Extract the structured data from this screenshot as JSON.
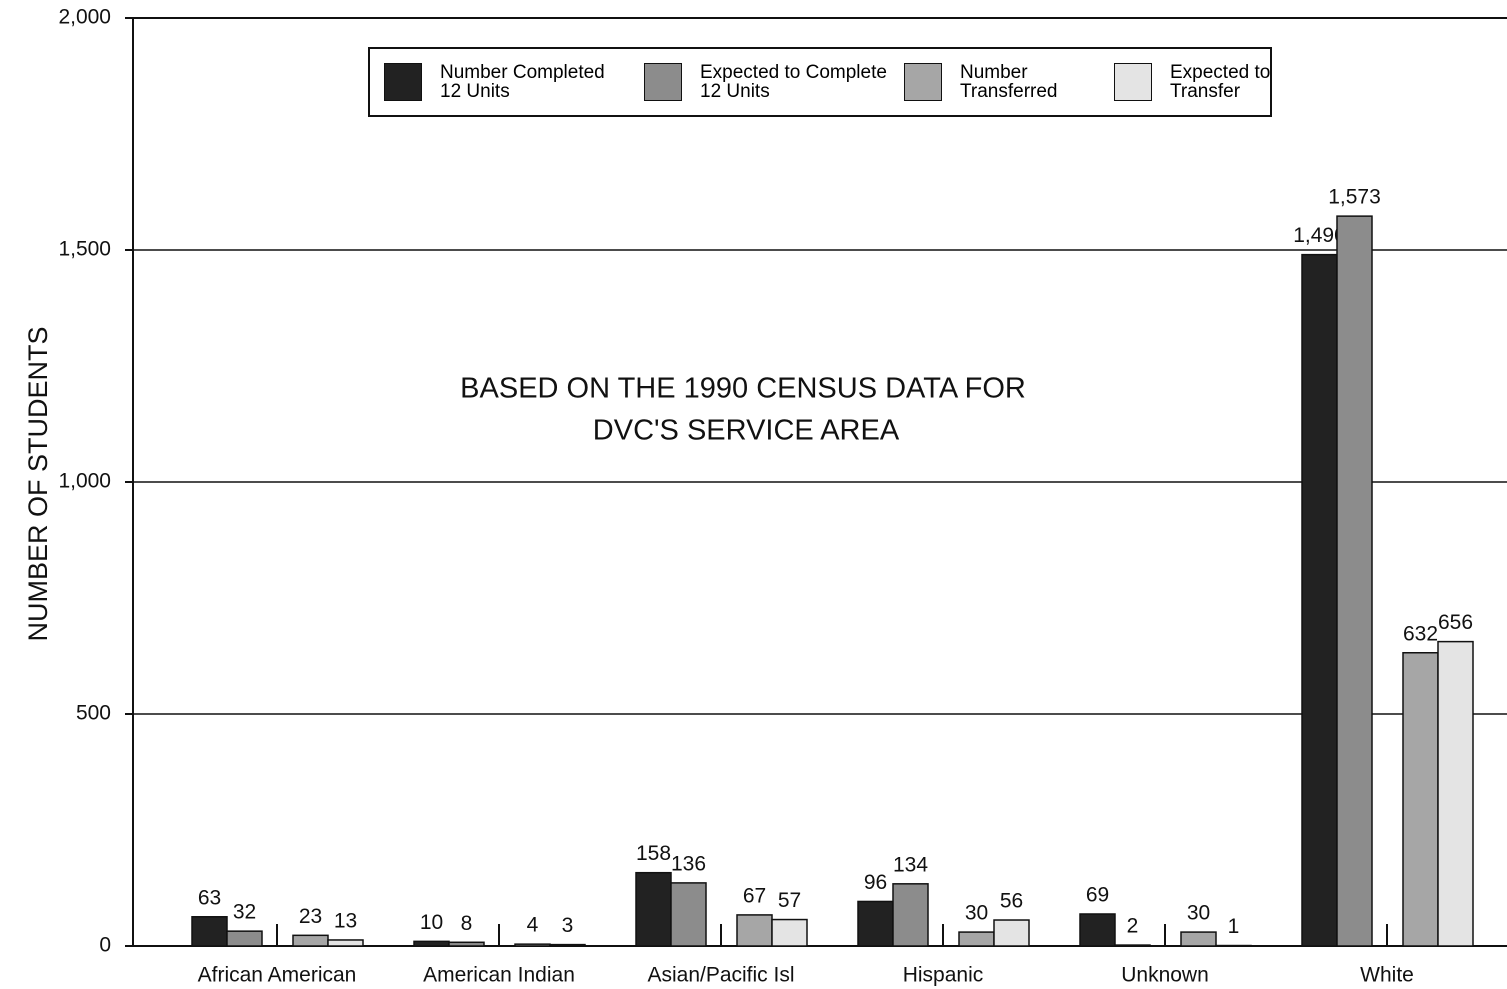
{
  "chart_data": {
    "type": "bar",
    "annotation": [
      "BASED ON THE 1990 CENSUS DATA FOR",
      "DVC'S SERVICE AREA"
    ],
    "y_label": "NUMBER OF STUDENTS",
    "categories": [
      "African American",
      "American Indian",
      "Asian/Pacific Isl",
      "Hispanic",
      "Unknown",
      "White"
    ],
    "series": [
      {
        "name": "Number Completed 12 Units",
        "color": "#222222",
        "values": [
          63,
          10,
          158,
          96,
          69,
          1490
        ],
        "value_labels": [
          "63",
          "10",
          "158",
          "96",
          "69",
          "1,490"
        ]
      },
      {
        "name": "Expected to Complete 12 Units",
        "color": "#8c8c8c",
        "values": [
          32,
          8,
          136,
          134,
          2,
          1573
        ],
        "value_labels": [
          "32",
          "8",
          "136",
          "134",
          "2",
          "1,573"
        ]
      },
      {
        "name": "Number Transferred",
        "color": "#a6a6a6",
        "values": [
          23,
          4,
          67,
          30,
          30,
          632
        ],
        "value_labels": [
          "23",
          "4",
          "67",
          "30",
          "30",
          "632"
        ]
      },
      {
        "name": "Expected to Transfer",
        "color": "#e4e4e4",
        "values": [
          13,
          3,
          57,
          56,
          1,
          656
        ],
        "value_labels": [
          "13",
          "3",
          "57",
          "56",
          "1",
          "656"
        ]
      }
    ],
    "ylim": [
      0,
      2000
    ],
    "yticks": [
      0,
      500,
      {
        "value": 1000,
        "label": "1,000"
      },
      {
        "value": 1500,
        "label": "1,500"
      },
      {
        "value": 2000,
        "label": "2,000"
      }
    ],
    "grid": true
  }
}
